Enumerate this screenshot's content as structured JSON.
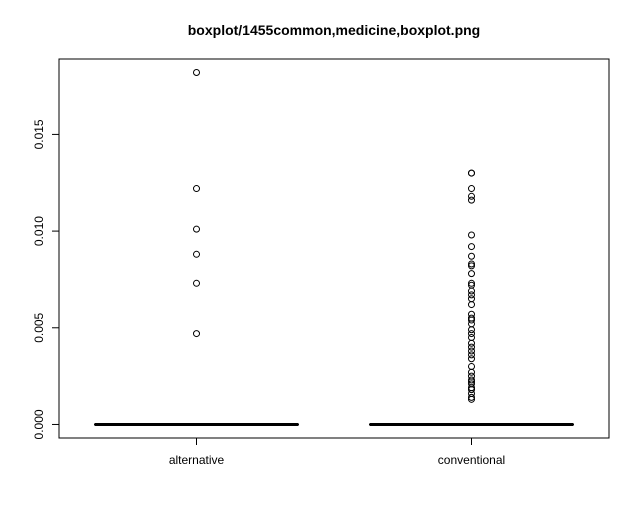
{
  "chart_data": {
    "type": "boxplot",
    "title": "boxplot/1455common,medicine,boxplot.png",
    "xlabel": "",
    "ylabel": "",
    "ylim": [
      -0.0007,
      0.0189
    ],
    "y_ticks": [
      0.0,
      0.005,
      0.01,
      0.015
    ],
    "y_tick_labels": [
      "0.000",
      "0.005",
      "0.010",
      "0.015"
    ],
    "categories": [
      "alternative",
      "conventional"
    ],
    "boxes": [
      {
        "name": "alternative",
        "min": 0,
        "q1": 0,
        "median": 0,
        "q3": 0,
        "max": 0,
        "outliers": [
          0.0047,
          0.0073,
          0.0088,
          0.0101,
          0.0122,
          0.0182
        ]
      },
      {
        "name": "conventional",
        "min": 0,
        "q1": 0,
        "median": 0,
        "q3": 0,
        "max": 0,
        "outliers": [
          0.0013,
          0.0014,
          0.0016,
          0.0018,
          0.0019,
          0.0021,
          0.0022,
          0.0023,
          0.0025,
          0.0027,
          0.003,
          0.0034,
          0.0036,
          0.0038,
          0.004,
          0.0042,
          0.0045,
          0.0047,
          0.0049,
          0.0052,
          0.0054,
          0.0055,
          0.0057,
          0.0062,
          0.0065,
          0.0067,
          0.0069,
          0.0072,
          0.0073,
          0.0078,
          0.0082,
          0.0083,
          0.0087,
          0.0092,
          0.0098,
          0.0116,
          0.0118,
          0.0122,
          0.013,
          0.013
        ]
      }
    ],
    "grid": false,
    "legend": "none"
  }
}
